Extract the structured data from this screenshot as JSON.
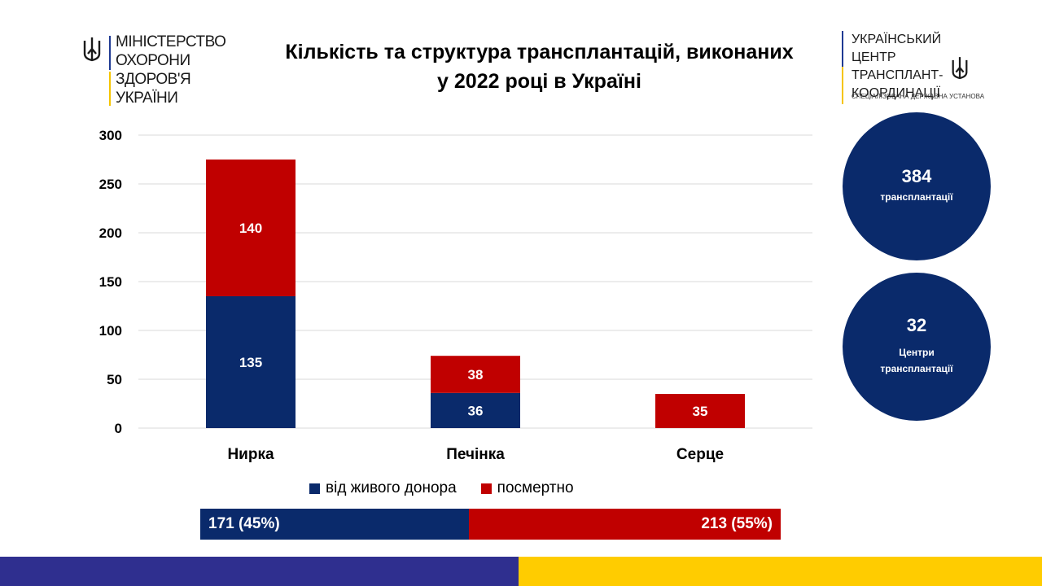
{
  "logo_left": {
    "lines": [
      "МІНІСТЕРСТВО",
      "ОХОРОНИ",
      "ЗДОРОВ'Я",
      "УКРАЇНИ"
    ]
  },
  "logo_right": {
    "lines": [
      "УКРАЇНСЬКИЙ ЦЕНТР",
      "ТРАНСПЛАНТ-",
      "КООРДИНАЦІЇ"
    ],
    "subtitle": "СПЕЦІАЛІЗОВАНА ДЕРЖАВНА УСТАНОВА"
  },
  "title_line1": "Кількість та структура трансплантацій, виконаних",
  "title_line2": "у 2022 році в Україні",
  "colors": {
    "live": "#0a2a6b",
    "posthumous": "#c00000",
    "circle": "#0a2a6b"
  },
  "chart_data": {
    "type": "bar",
    "stacked": true,
    "categories": [
      "Нирка",
      "Печінка",
      "Серце"
    ],
    "series": [
      {
        "name": "від живого донора",
        "values": [
          135,
          36,
          0
        ]
      },
      {
        "name": "посмертно",
        "values": [
          140,
          38,
          35
        ]
      }
    ],
    "y_ticks": [
      0,
      50,
      100,
      150,
      200,
      250,
      300
    ],
    "ylim": [
      0,
      300
    ],
    "grid": true,
    "legend": "bottom"
  },
  "summary": {
    "total": {
      "value": "384",
      "label": "трансплантації"
    },
    "centers": {
      "value": "32",
      "label": "Центри трансплантації"
    }
  },
  "totals_bar": {
    "live": "171 (45%)",
    "posthumous": "213 (55%)",
    "live_share": 0.45
  }
}
